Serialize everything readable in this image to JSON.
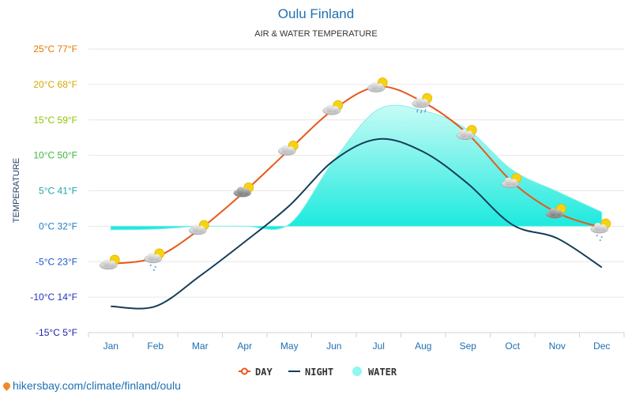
{
  "chart_data": {
    "type": "line",
    "title": "Oulu Finland",
    "subtitle": "AIR & WATER TEMPERATURE",
    "ylabel": "TEMPERATURE",
    "xlabel": "",
    "categories": [
      "Jan",
      "Feb",
      "Mar",
      "Apr",
      "May",
      "Jun",
      "Jul",
      "Aug",
      "Sep",
      "Oct",
      "Nov",
      "Dec"
    ],
    "ylim": [
      -15,
      25
    ],
    "yticks": [
      {
        "value": 25,
        "label": "25°C 77°F",
        "color": "#e07b00"
      },
      {
        "value": 20,
        "label": "20°C 68°F",
        "color": "#d7a800"
      },
      {
        "value": 15,
        "label": "15°C 59°F",
        "color": "#8fc400"
      },
      {
        "value": 10,
        "label": "10°C 50°F",
        "color": "#3fb53f"
      },
      {
        "value": 5,
        "label": "5°C 41°F",
        "color": "#22a6a6"
      },
      {
        "value": 0,
        "label": "0°C 32°F",
        "color": "#1f7fc7"
      },
      {
        "value": -5,
        "label": "-5°C 23°F",
        "color": "#1f55c7"
      },
      {
        "value": -10,
        "label": "-10°C 14°F",
        "color": "#1f35c0"
      },
      {
        "value": -15,
        "label": "-15°C 5°F",
        "color": "#2020b0"
      }
    ],
    "series": [
      {
        "name": "DAY",
        "color": "#e8581c",
        "values": [
          -5.3,
          -4.4,
          -0.4,
          4.9,
          10.8,
          16.5,
          19.7,
          17.5,
          13.0,
          6.2,
          1.9,
          -0.2
        ]
      },
      {
        "name": "NIGHT",
        "color": "#143d59",
        "values": [
          -11.3,
          -11.3,
          -7.0,
          -2.2,
          2.9,
          9.3,
          12.3,
          10.5,
          6.0,
          0.2,
          -1.7,
          -5.8
        ]
      },
      {
        "name": "WATER",
        "color": "#2ff0e0",
        "values": [
          -0.5,
          -0.4,
          0.0,
          0.0,
          0.3,
          9.3,
          16.5,
          16.3,
          13.6,
          7.9,
          4.9,
          2.0
        ]
      }
    ],
    "legend": [
      {
        "name": "DAY",
        "color": "#e8581c"
      },
      {
        "name": "NIGHT",
        "color": "#143d59"
      },
      {
        "name": "WATER",
        "color": "#8ff6f0"
      }
    ],
    "legend_position": "bottom-center",
    "grid": true,
    "weather_icons": [
      "partly-cloudy",
      "snow-partly-cloudy",
      "partly-cloudy",
      "cloudy-sun",
      "partly-cloudy",
      "partly-cloudy",
      "partly-cloudy",
      "rain-partly-cloudy",
      "partly-cloudy",
      "partly-cloudy",
      "cloudy-sun",
      "snow-partly-cloudy"
    ]
  },
  "source": {
    "icon": "location-pin-icon",
    "text": "hikersbay.com/climate/finland/oulu"
  }
}
